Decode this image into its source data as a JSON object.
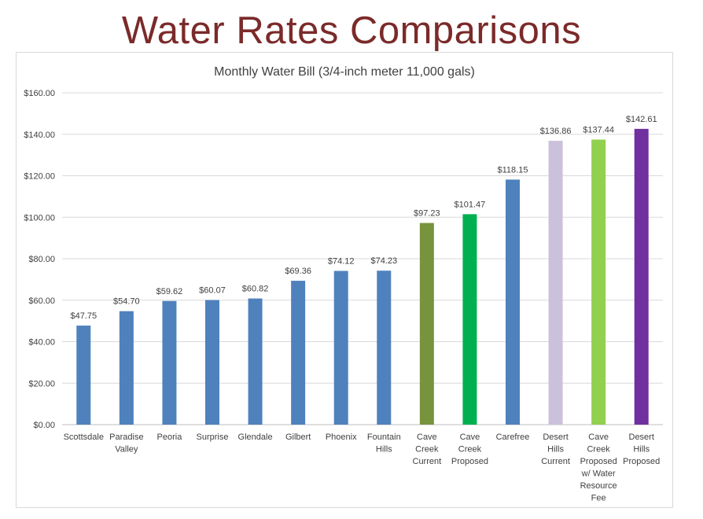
{
  "slide": {
    "title": "Water Rates Comparisons"
  },
  "chart_data": {
    "type": "bar",
    "title": "Monthly Water Bill (3/4-inch meter 11,000 gals)",
    "xlabel": "",
    "ylabel": "",
    "ylim": [
      0,
      160
    ],
    "yticks": [
      0,
      20,
      40,
      60,
      80,
      100,
      120,
      140,
      160
    ],
    "ytick_labels": [
      "$0.00",
      "$20.00",
      "$40.00",
      "$60.00",
      "$80.00",
      "$100.00",
      "$120.00",
      "$140.00",
      "$160.00"
    ],
    "grid": true,
    "categories": [
      [
        "Scottsdale"
      ],
      [
        "Paradise",
        "Valley"
      ],
      [
        "Peoria"
      ],
      [
        "Surprise"
      ],
      [
        "Glendale"
      ],
      [
        "Gilbert"
      ],
      [
        "Phoenix"
      ],
      [
        "Fountain",
        "Hills"
      ],
      [
        "Cave",
        "Creek",
        "Current"
      ],
      [
        "Cave",
        "Creek",
        "Proposed"
      ],
      [
        "Carefree"
      ],
      [
        "Desert",
        "Hills",
        "Current"
      ],
      [
        "Cave",
        "Creek",
        "Proposed",
        "w/ Water",
        "Resource",
        "Fee"
      ],
      [
        "Desert",
        "Hills",
        "Proposed"
      ]
    ],
    "values": [
      47.75,
      54.7,
      59.62,
      60.07,
      60.82,
      69.36,
      74.12,
      74.23,
      97.23,
      101.47,
      118.15,
      136.86,
      137.44,
      142.61
    ],
    "data_labels": [
      "$47.75",
      "$54.70",
      "$59.62",
      "$60.07",
      "$60.82",
      "$69.36",
      "$74.12",
      "$74.23",
      "$97.23",
      "$101.47",
      "$118.15",
      "$136.86",
      "$137.44",
      "$142.61"
    ],
    "colors": [
      "#4f81bd",
      "#4f81bd",
      "#4f81bd",
      "#4f81bd",
      "#4f81bd",
      "#4f81bd",
      "#4f81bd",
      "#4f81bd",
      "#77933c",
      "#00b050",
      "#4f81bd",
      "#ccc1da",
      "#92d050",
      "#7030a0"
    ]
  }
}
